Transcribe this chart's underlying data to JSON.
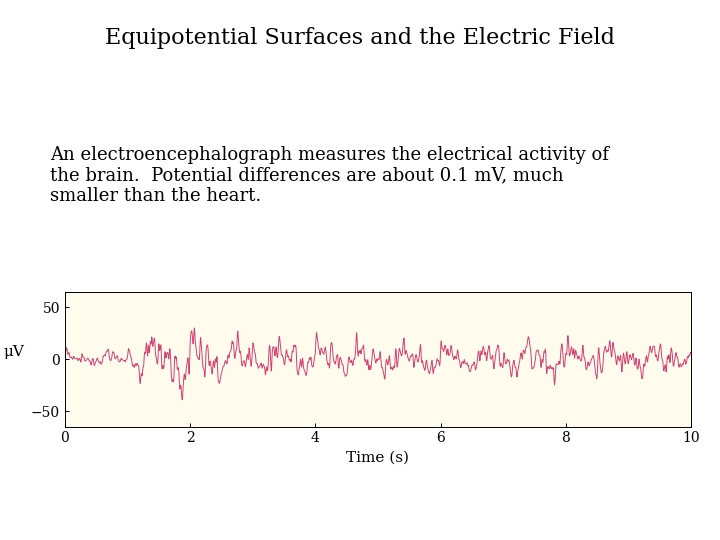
{
  "title": "Equipotential Surfaces and the Electric Field",
  "title_fontsize": 16,
  "annotation_text": "An electroencephalograph measures the electrical activity of\nthe brain.  Potential differences are about 0.1 mV, much\nsmaller than the heart.",
  "annotation_fontsize": 13,
  "xlabel": "Time (s)",
  "ylabel": "μV",
  "xlim": [
    0,
    10
  ],
  "ylim": [
    -65,
    65
  ],
  "yticks": [
    -50,
    0,
    50
  ],
  "xticks": [
    0,
    2,
    4,
    6,
    8,
    10
  ],
  "line_color": "#d44070",
  "bg_color": "#fffcee",
  "fig_bg_color": "#ffffff",
  "linewidth": 0.7,
  "seed": 17,
  "n_points": 1500
}
